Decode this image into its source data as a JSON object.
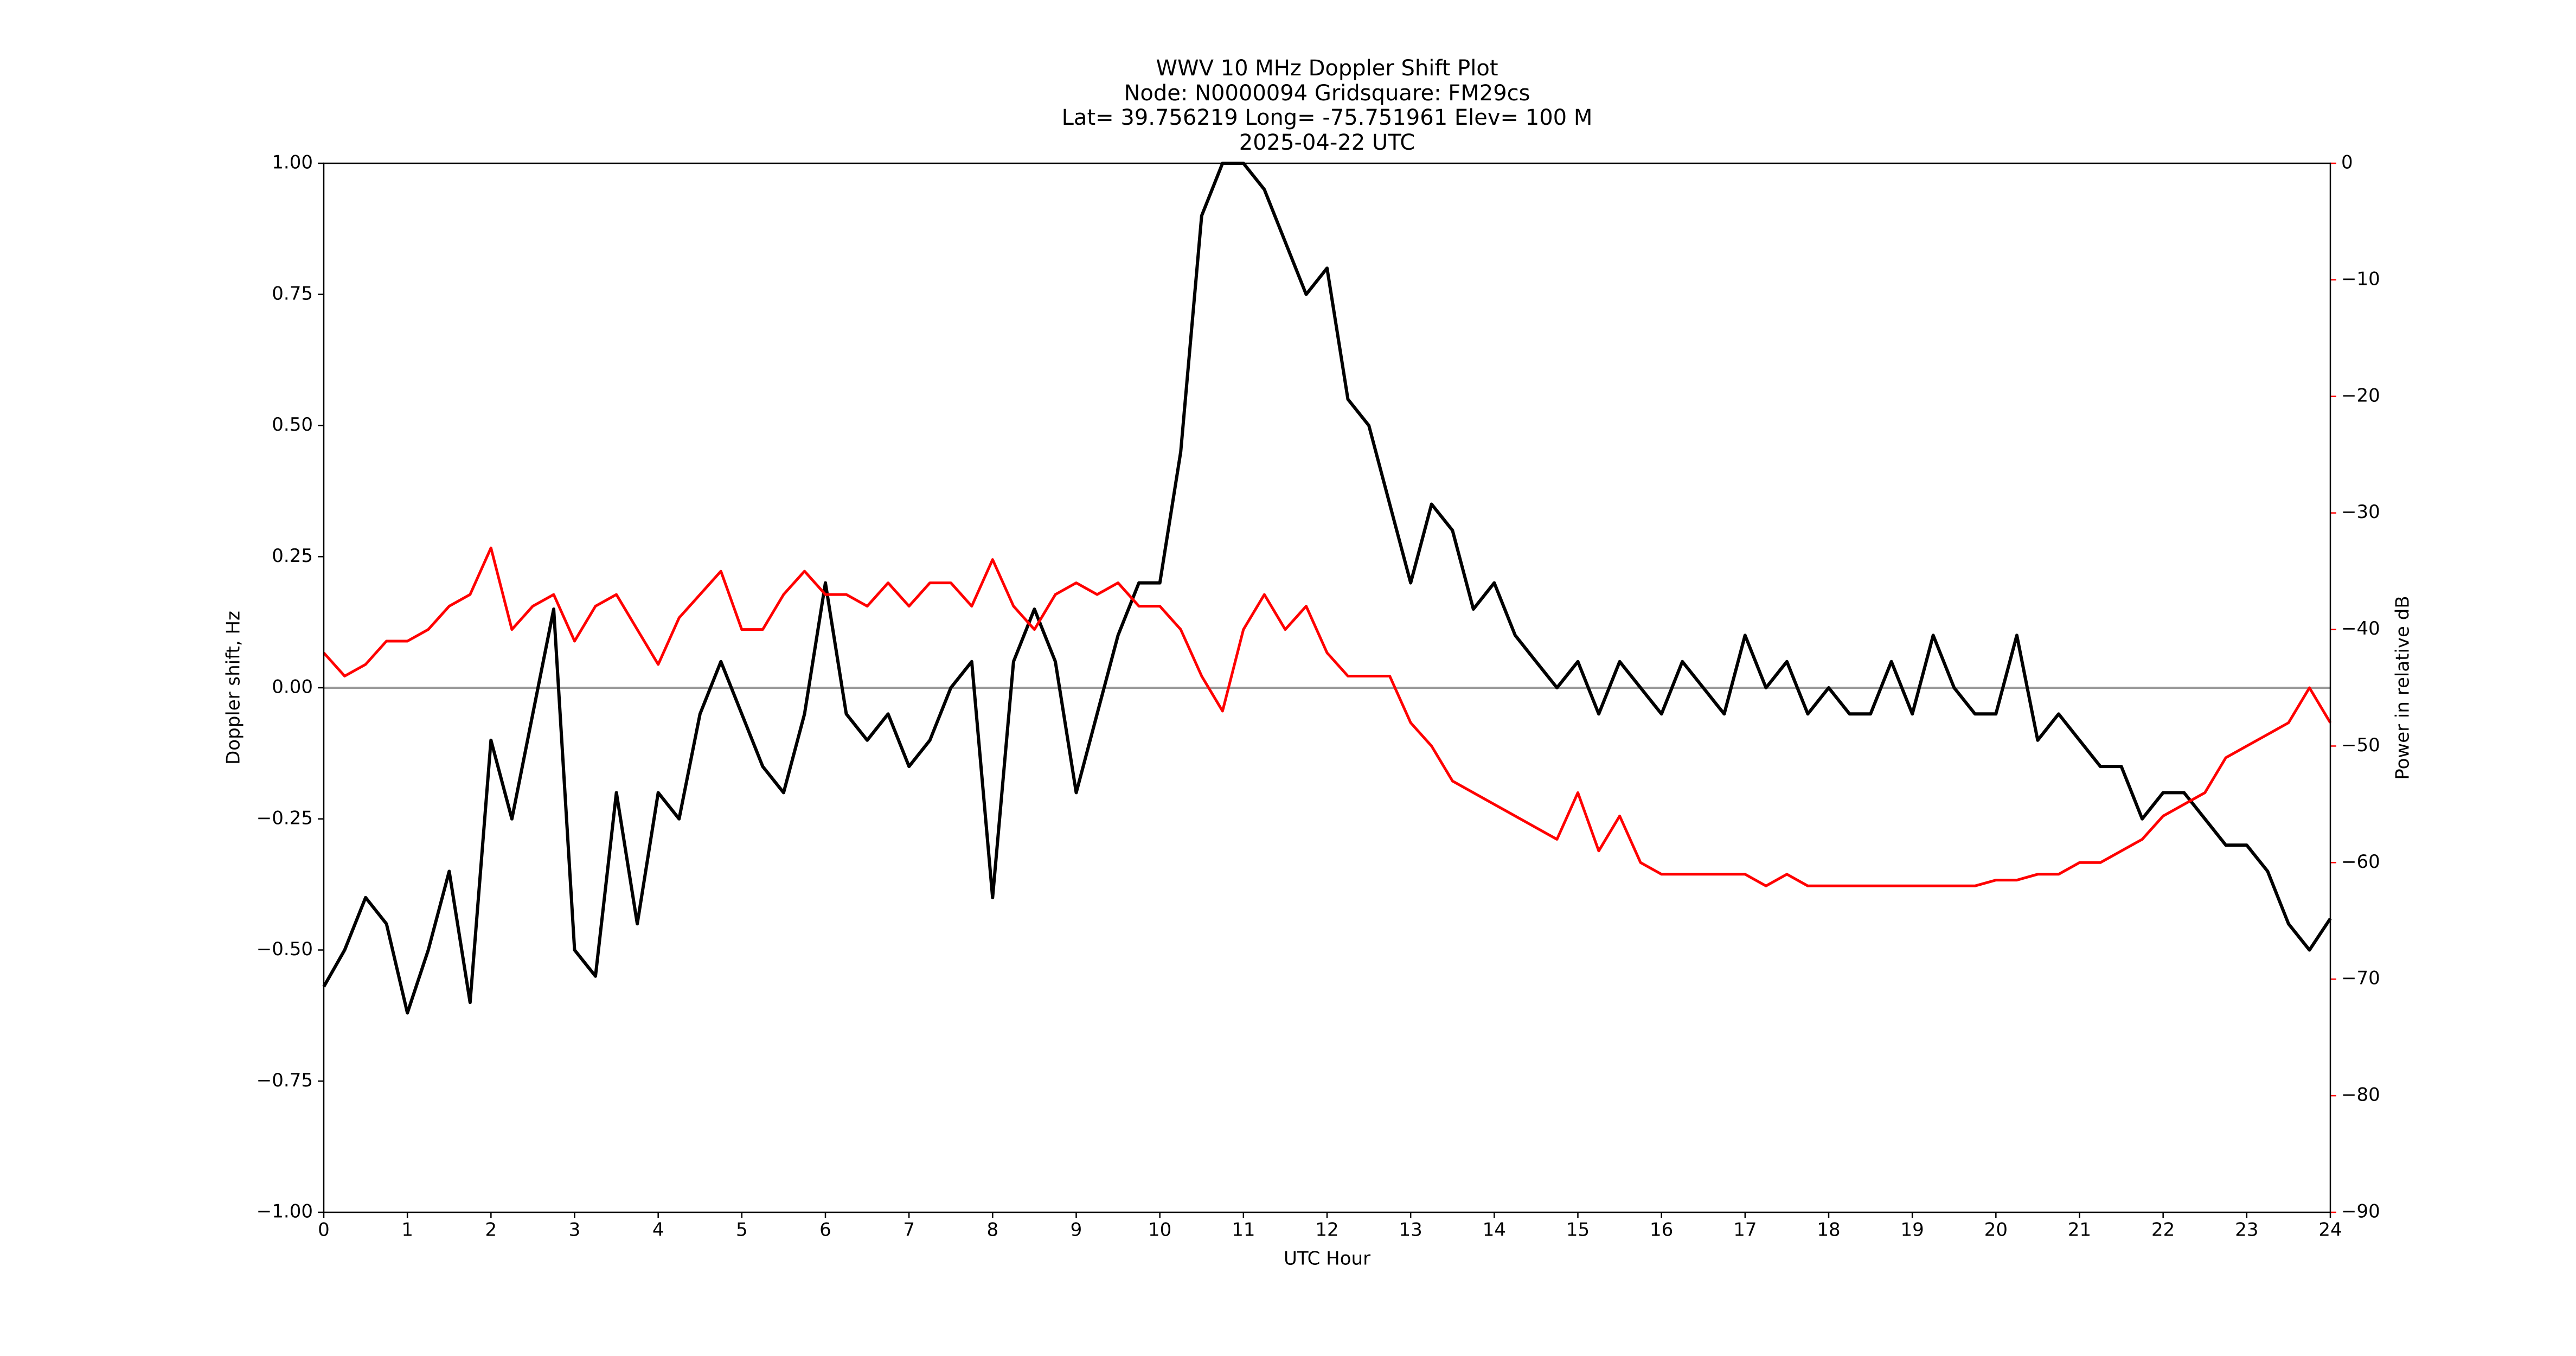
{
  "chart_data": {
    "type": "line",
    "title": "WWV 10 MHz Doppler Shift Plot",
    "subtitles": [
      "Node:  N0000094     Gridsquare:  FM29cs",
      "Lat= 39.756219    Long= -75.751961    Elev= 100 M",
      "2025-04-22  UTC"
    ],
    "x_label": "UTC Hour",
    "y_label": "Doppler shift, Hz",
    "y2_label": "Power in relative dB",
    "y2_color": "#ff0000",
    "x": [
      0,
      0.25,
      0.5,
      0.75,
      1,
      1.25,
      1.5,
      1.75,
      2,
      2.25,
      2.5,
      2.75,
      3,
      3.25,
      3.5,
      3.75,
      4,
      4.25,
      4.5,
      4.75,
      5,
      5.25,
      5.5,
      5.75,
      6,
      6.25,
      6.5,
      6.75,
      7,
      7.25,
      7.5,
      7.75,
      8,
      8.25,
      8.5,
      8.75,
      9,
      9.25,
      9.5,
      9.75,
      10,
      10.25,
      10.5,
      10.75,
      11,
      11.25,
      11.5,
      11.75,
      12,
      12.25,
      12.5,
      12.75,
      13,
      13.25,
      13.5,
      13.75,
      14,
      14.25,
      14.5,
      14.75,
      15,
      15.25,
      15.5,
      15.75,
      16,
      16.25,
      16.5,
      16.75,
      17,
      17.25,
      17.5,
      17.75,
      18,
      18.25,
      18.5,
      18.75,
      19,
      19.25,
      19.5,
      19.75,
      20,
      20.25,
      20.5,
      20.75,
      21,
      21.25,
      21.5,
      21.75,
      22,
      22.25,
      22.5,
      22.75,
      23,
      23.25,
      23.5,
      23.75,
      24
    ],
    "series": [
      {
        "name": "Doppler shift",
        "color": "#000000",
        "values": [
          -0.57,
          -0.5,
          -0.4,
          -0.45,
          -0.62,
          -0.5,
          -0.35,
          -0.6,
          -0.1,
          -0.25,
          -0.05,
          0.15,
          -0.5,
          -0.55,
          -0.2,
          -0.45,
          -0.2,
          -0.25,
          -0.05,
          0.05,
          -0.05,
          -0.15,
          -0.2,
          -0.05,
          0.2,
          -0.05,
          -0.1,
          -0.05,
          -0.15,
          -0.1,
          0,
          0.05,
          -0.4,
          0.05,
          0.15,
          0.05,
          -0.2,
          -0.05,
          0.1,
          0.2,
          0.2,
          0.45,
          0.9,
          1,
          1,
          0.95,
          0.85,
          0.75,
          0.8,
          0.55,
          0.5,
          0.35,
          0.2,
          0.35,
          0.3,
          0.15,
          0.2,
          0.1,
          0.05,
          0,
          0.05,
          -0.05,
          0.05,
          0,
          -0.05,
          0.05,
          0,
          -0.05,
          0.1,
          0,
          0.05,
          -0.05,
          0,
          -0.05,
          -0.05,
          0.05,
          -0.05,
          0.1,
          0,
          -0.05,
          -0.05,
          0.1,
          -0.1,
          -0.05,
          -0.1,
          -0.15,
          -0.15,
          -0.25,
          -0.2,
          -0.2,
          -0.25,
          -0.3,
          -0.3,
          -0.35,
          -0.45,
          -0.5,
          -0.44
        ]
      },
      {
        "name": "Power",
        "color": "#ff0000",
        "axis": "y2",
        "values": [
          -42,
          -44,
          -43,
          -41,
          -41,
          -40,
          -38,
          -37,
          -33,
          -40,
          -38,
          -37,
          -41,
          -38,
          -37,
          -40,
          -43,
          -39,
          -37,
          -35,
          -40,
          -40,
          -37,
          -35,
          -37,
          -37,
          -38,
          -36,
          -38,
          -36,
          -36,
          -38,
          -34,
          -38,
          -40,
          -37,
          -36,
          -37,
          -36,
          -38,
          -38,
          -40,
          -44,
          -47,
          -40,
          -37,
          -40,
          -38,
          -42,
          -44,
          -44,
          -44,
          -48,
          -50,
          -53,
          -54,
          -55,
          -56,
          -57,
          -58,
          -54,
          -59,
          -56,
          -60,
          -61,
          -61,
          -61,
          -61,
          -61,
          -62,
          -61,
          -62,
          -62,
          -62,
          -62,
          -62,
          -62,
          -62,
          -62,
          -62,
          -61.5,
          -61.5,
          -61,
          -61,
          -60,
          -60,
          -59,
          -58,
          -56,
          -55,
          -54,
          -51,
          -50,
          -49,
          -48,
          -45,
          -48
        ]
      }
    ],
    "zero_line": 0,
    "zero_line_color": "#999999",
    "xlim": [
      0,
      24
    ],
    "xticks": [
      0,
      1,
      2,
      3,
      4,
      5,
      6,
      7,
      8,
      9,
      10,
      11,
      12,
      13,
      14,
      15,
      16,
      17,
      18,
      19,
      20,
      21,
      22,
      23,
      24
    ],
    "ylim": [
      -1,
      1
    ],
    "yticks": [
      {
        "value": -1,
        "label": "−1.00"
      },
      {
        "value": -0.75,
        "label": "−0.75"
      },
      {
        "value": -0.5,
        "label": "−0.50"
      },
      {
        "value": -0.25,
        "label": "−0.25"
      },
      {
        "value": 0,
        "label": "0.00"
      },
      {
        "value": 0.25,
        "label": "0.25"
      },
      {
        "value": 0.5,
        "label": "0.50"
      },
      {
        "value": 0.75,
        "label": "0.75"
      },
      {
        "value": 1,
        "label": "1.00"
      }
    ],
    "y2lim": [
      -90,
      0
    ],
    "y2ticks": [
      {
        "value": -90,
        "label": "−90"
      },
      {
        "value": -80,
        "label": "−80"
      },
      {
        "value": -70,
        "label": "−70"
      },
      {
        "value": -60,
        "label": "−60"
      },
      {
        "value": -50,
        "label": "−50"
      },
      {
        "value": -40,
        "label": "−40"
      },
      {
        "value": -30,
        "label": "−30"
      },
      {
        "value": -20,
        "label": "−20"
      },
      {
        "value": -10,
        "label": "−10"
      },
      0
    ]
  }
}
